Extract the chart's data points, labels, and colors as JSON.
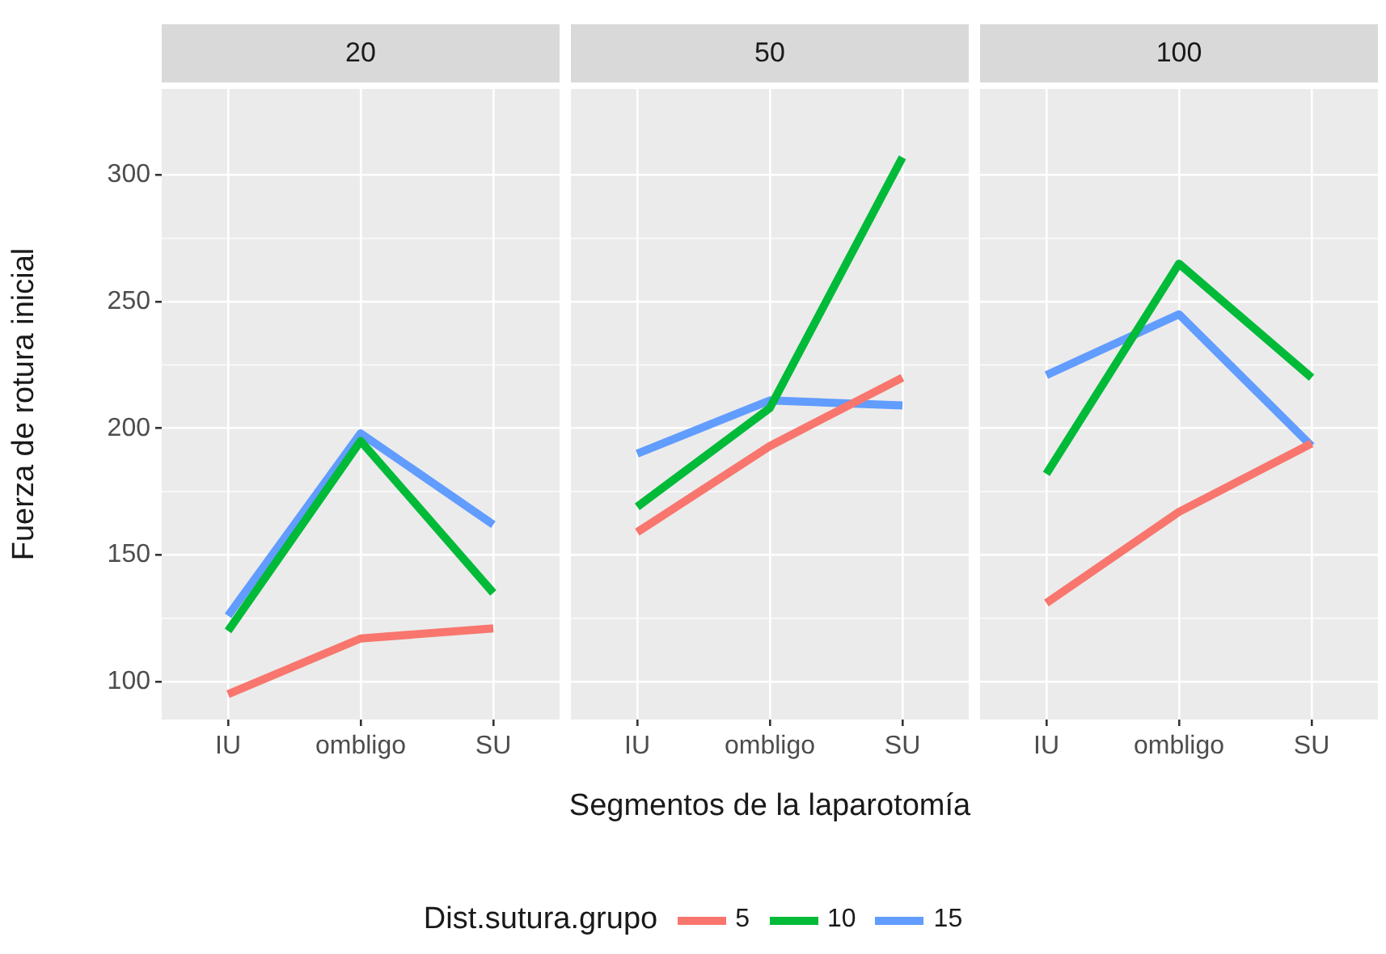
{
  "chart_data": [
    {
      "type": "line",
      "title": "20",
      "ylabel": "Fuerza de rotura inicial",
      "categories": [
        "IU",
        "ombligo",
        "SU"
      ],
      "ylim": [
        85,
        334
      ],
      "yticks": [
        100,
        150,
        200,
        250,
        300
      ],
      "grid": true,
      "marker": "none",
      "series": [
        {
          "color": "#f8766d",
          "values": [
            95,
            117,
            121
          ]
        },
        {
          "color": "#00ba38",
          "values": [
            120,
            195,
            135
          ]
        },
        {
          "color": "#619cff",
          "values": [
            126,
            198,
            162
          ]
        }
      ]
    },
    {
      "type": "line",
      "title": "50",
      "xlabel": "Segmentos de la laparotomía",
      "legend_title": "Dist.sutura.grupo",
      "legend": "bottom",
      "categories": [
        "IU",
        "ombligo",
        "SU"
      ],
      "ylim": [
        85,
        334
      ],
      "yticks": [
        100,
        150,
        200,
        250,
        300
      ],
      "tick_labels": "x",
      "grid": true,
      "marker": "none",
      "series": [
        {
          "name": "5",
          "color": "#f8766d",
          "values": [
            159,
            193,
            220
          ]
        },
        {
          "name": "10",
          "color": "#00ba38",
          "values": [
            169,
            208,
            307
          ]
        },
        {
          "name": "15",
          "color": "#619cff",
          "values": [
            190,
            211,
            209
          ]
        }
      ]
    },
    {
      "type": "line",
      "title": "100",
      "categories": [
        "IU",
        "ombligo",
        "SU"
      ],
      "ylim": [
        85,
        334
      ],
      "yticks": [
        100,
        150,
        200,
        250,
        300
      ],
      "tick_labels": "x",
      "grid": true,
      "marker": "none",
      "series": [
        {
          "color": "#f8766d",
          "values": [
            131,
            167,
            194
          ]
        },
        {
          "color": "#00ba38",
          "values": [
            182,
            265,
            220
          ]
        },
        {
          "color": "#619cff",
          "values": [
            221,
            245,
            193
          ]
        }
      ]
    }
  ]
}
